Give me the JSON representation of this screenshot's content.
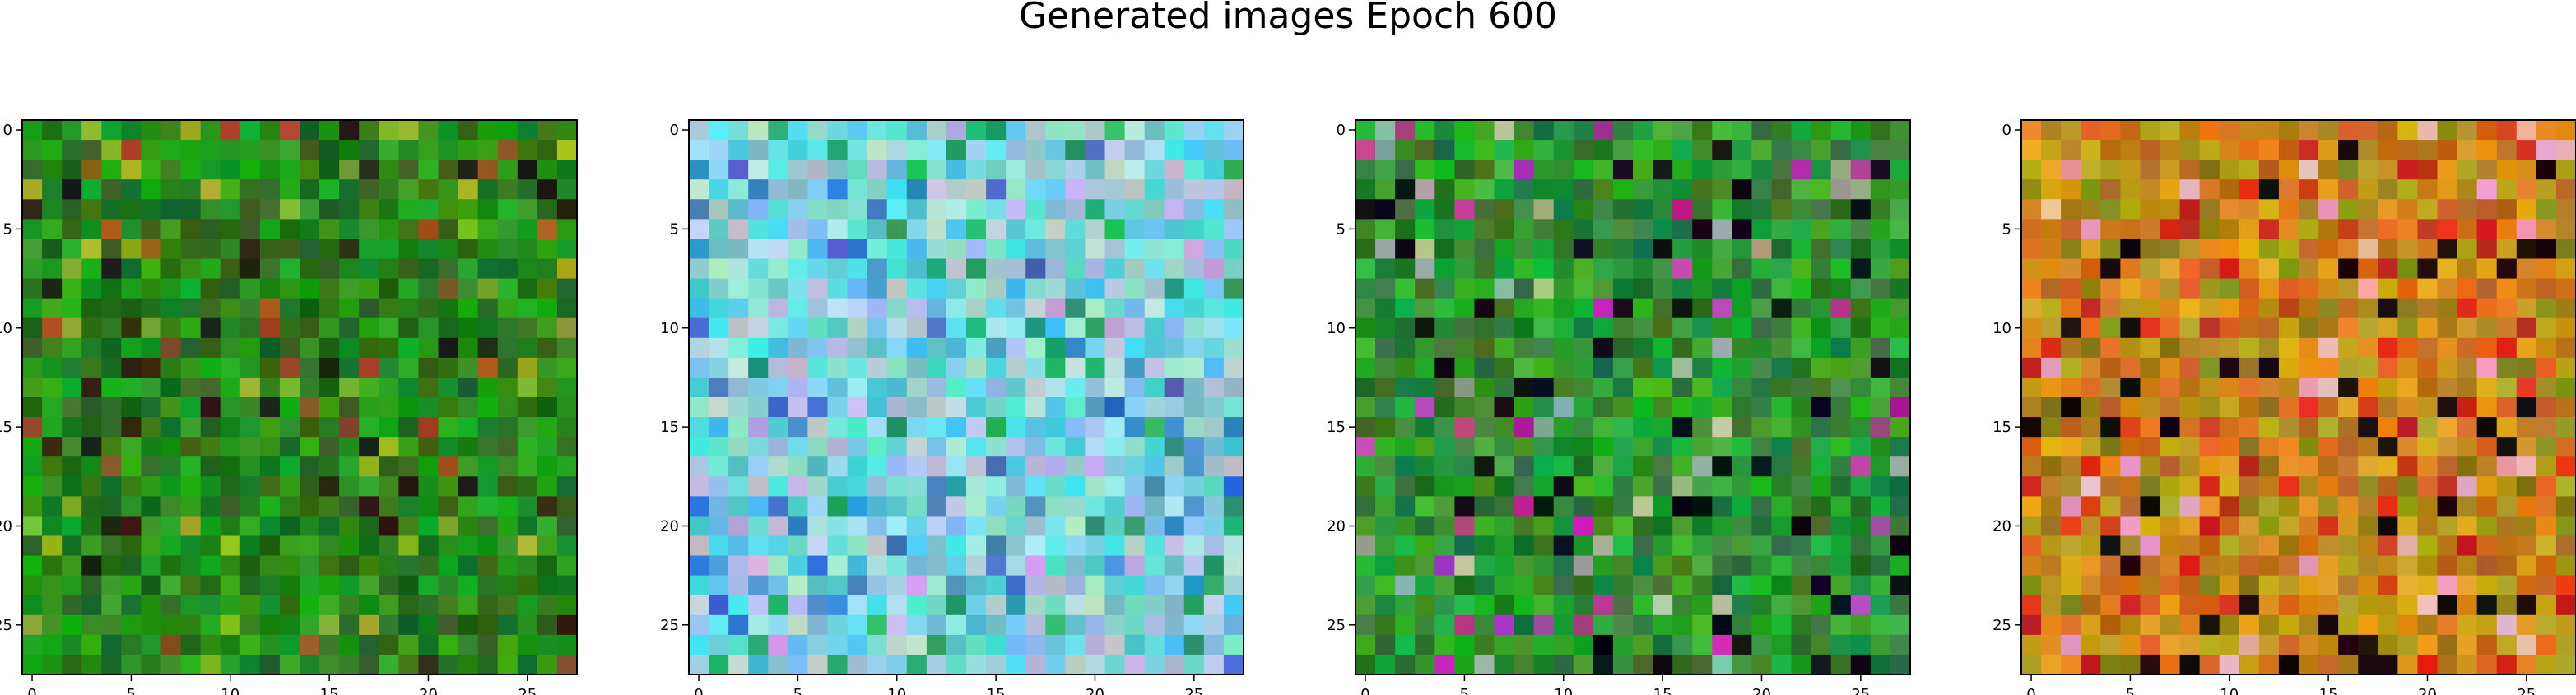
{
  "title": "Generated images Epoch 600",
  "chart_data": [
    {
      "type": "heatmap",
      "palette": "green",
      "xlim": [
        -0.5,
        27.5
      ],
      "ylim": [
        27.5,
        -0.5
      ],
      "xticks": [
        "0",
        "5",
        "10",
        "15",
        "20",
        "25"
      ],
      "yticks": [
        "0",
        "5",
        "10",
        "15",
        "20",
        "25"
      ]
    },
    {
      "type": "heatmap",
      "palette": "cyan",
      "xlim": [
        -0.5,
        27.5
      ],
      "ylim": [
        27.5,
        -0.5
      ],
      "xticks": [
        "0",
        "5",
        "10",
        "15",
        "20",
        "25"
      ],
      "yticks": [
        "0",
        "5",
        "10",
        "15",
        "20",
        "25"
      ]
    },
    {
      "type": "heatmap",
      "palette": "green-mixed",
      "xlim": [
        -0.5,
        27.5
      ],
      "ylim": [
        27.5,
        -0.5
      ],
      "xticks": [
        "0",
        "5",
        "10",
        "15",
        "20",
        "25"
      ],
      "yticks": [
        "0",
        "5",
        "10",
        "15",
        "20",
        "25"
      ]
    },
    {
      "type": "heatmap",
      "palette": "orange",
      "xlim": [
        -0.5,
        27.5
      ],
      "ylim": [
        27.5,
        -0.5
      ],
      "xticks": [
        "0",
        "5",
        "10",
        "15",
        "20",
        "25"
      ],
      "yticks": [
        "0",
        "5",
        "10",
        "15",
        "20",
        "25"
      ]
    }
  ]
}
